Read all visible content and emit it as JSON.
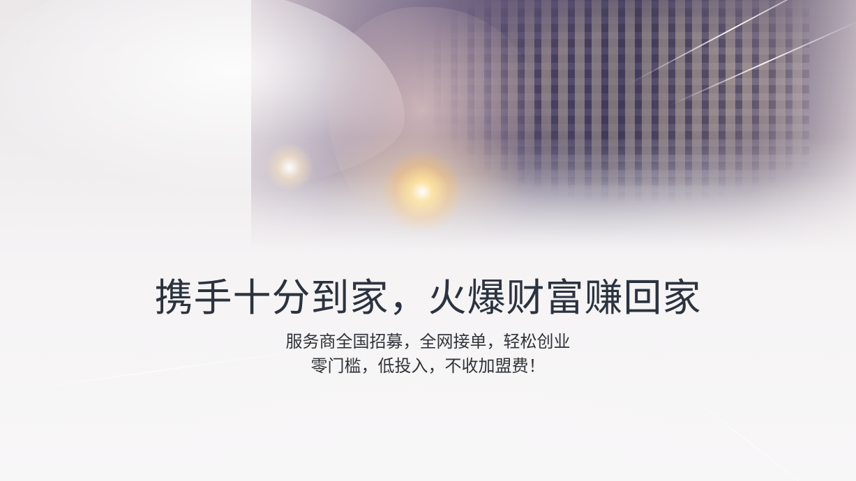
{
  "banner": {
    "headline": "携手十分到家，火爆财富赚回家",
    "subline_1": "服务商全国招募，全网接单，轻松创业",
    "subline_2": "零门槛，低投入，不收加盟费！"
  },
  "colors": {
    "headline_text": "#2b3340",
    "subline_text": "#2f3338",
    "flare": "#ffd27a",
    "city_tint": "#3a3456"
  }
}
